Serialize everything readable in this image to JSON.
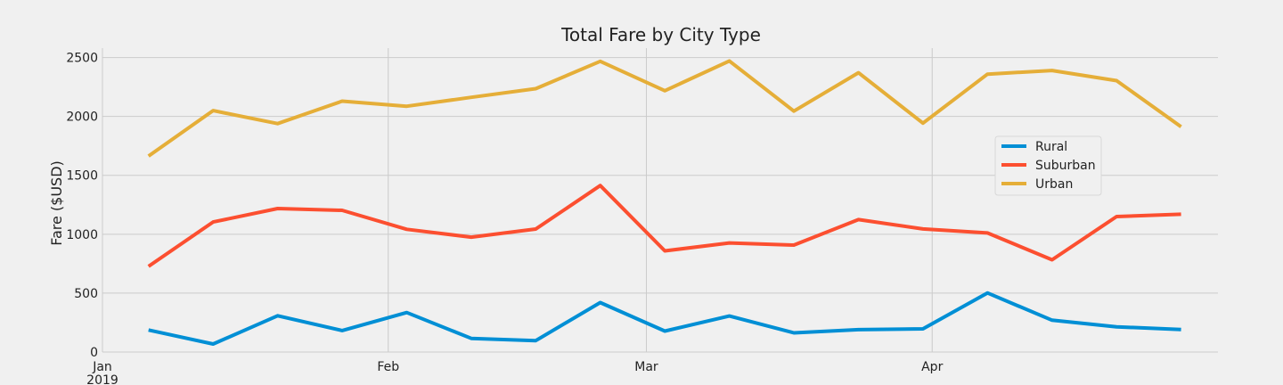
{
  "chart_data": {
    "type": "line",
    "title": "Total Fare by City Type",
    "xlabel": "",
    "ylabel": "Fare ($USD)",
    "ylim": [
      0,
      2580
    ],
    "yticks": [
      0,
      500,
      1000,
      1500,
      2000,
      2500
    ],
    "x_dates": [
      "2019-01-06",
      "2019-01-13",
      "2019-01-20",
      "2019-01-27",
      "2019-02-03",
      "2019-02-10",
      "2019-02-17",
      "2019-02-24",
      "2019-03-03",
      "2019-03-10",
      "2019-03-17",
      "2019-03-24",
      "2019-03-31",
      "2019-04-07",
      "2019-04-14",
      "2019-04-21",
      "2019-04-28"
    ],
    "xlim": [
      "2019-01-01",
      "2019-05-02"
    ],
    "xticks": [
      {
        "date": "2019-01-01",
        "label": "Jan",
        "sublabel": "2019"
      },
      {
        "date": "2019-02-01",
        "label": "Feb",
        "sublabel": ""
      },
      {
        "date": "2019-03-01",
        "label": "Mar",
        "sublabel": ""
      },
      {
        "date": "2019-04-01",
        "label": "Apr",
        "sublabel": ""
      }
    ],
    "series": [
      {
        "name": "Rural",
        "color": "#008fd5",
        "values": [
          187,
          68,
          308,
          182,
          335,
          116,
          97,
          420,
          178,
          306,
          163,
          190,
          197,
          502,
          270,
          214,
          191
        ]
      },
      {
        "name": "Suburban",
        "color": "#fc4f30",
        "values": [
          727,
          1104,
          1218,
          1203,
          1042,
          975,
          1044,
          1413,
          859,
          926,
          908,
          1124,
          1045,
          1011,
          783,
          1150,
          1170
        ]
      },
      {
        "name": "Urban",
        "color": "#e5ae38",
        "values": [
          1664,
          2050,
          1939,
          2130,
          2087,
          2162,
          2236,
          2468,
          2218,
          2471,
          2045,
          2371,
          1943,
          2359,
          2390,
          2304,
          1913
        ]
      }
    ],
    "grid": true,
    "legend_position": "center-right"
  }
}
